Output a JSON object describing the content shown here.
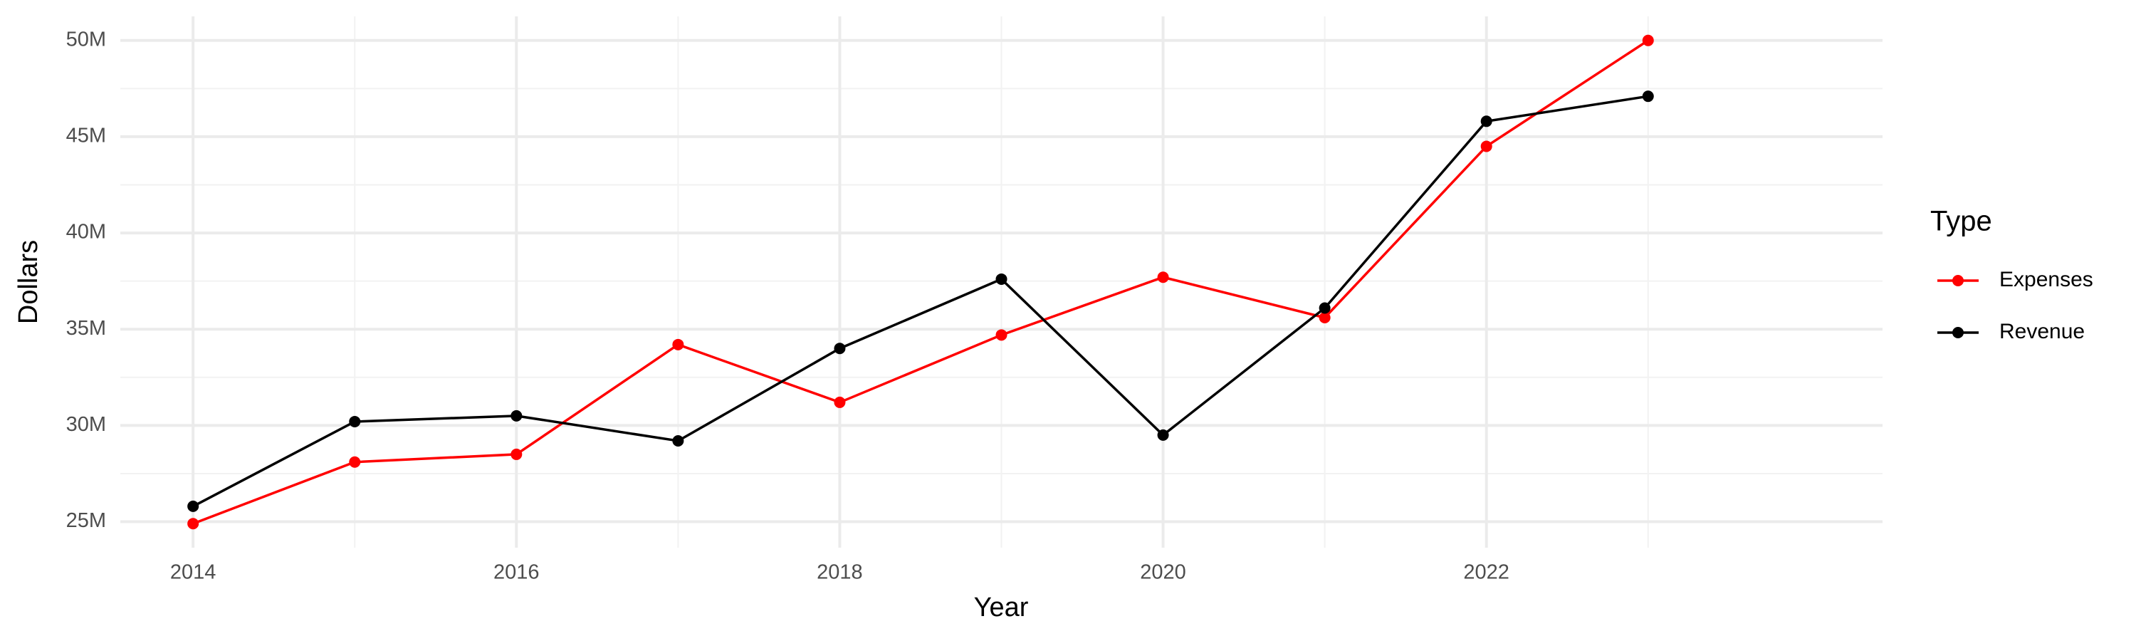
{
  "chart_data": {
    "type": "line",
    "x_label": "Year",
    "y_label": "Dollars",
    "legend_title": "Type",
    "x": [
      2014,
      2015,
      2016,
      2017,
      2018,
      2019,
      2020,
      2021,
      2022,
      2023
    ],
    "series": [
      {
        "name": "Expenses",
        "color": "#ff0000",
        "values": [
          24900000,
          28100000,
          28500000,
          34200000,
          31200000,
          34700000,
          37700000,
          35600000,
          44500000,
          50000000
        ]
      },
      {
        "name": "Revenue",
        "color": "#000000",
        "values": [
          25800000,
          30200000,
          30500000,
          29200000,
          34000000,
          37600000,
          29500000,
          36100000,
          45800000,
          47100000
        ]
      }
    ],
    "xlim": [
      2013.55,
      2024.45
    ],
    "xticks": [
      2014,
      2016,
      2018,
      2020,
      2022
    ],
    "ylim": [
      23650000,
      51250000
    ],
    "yticks": [
      {
        "value": 25000000,
        "label": "25M"
      },
      {
        "value": 30000000,
        "label": "30M"
      },
      {
        "value": 35000000,
        "label": "35M"
      },
      {
        "value": 40000000,
        "label": "40M"
      },
      {
        "value": 45000000,
        "label": "45M"
      },
      {
        "value": 50000000,
        "label": "50M"
      }
    ],
    "grid": true,
    "legend": "right"
  }
}
